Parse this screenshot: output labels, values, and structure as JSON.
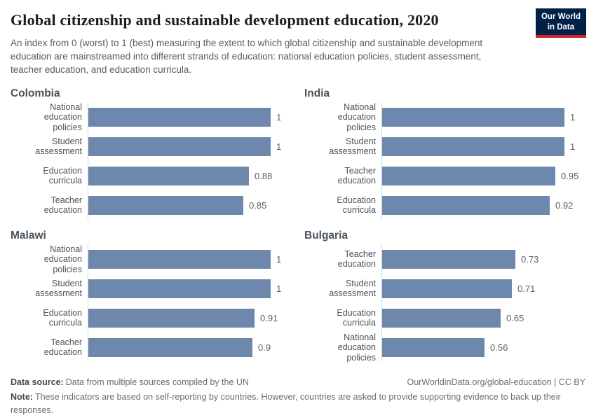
{
  "header": {
    "title": "Global citizenship and sustainable development education, 2020",
    "subtitle": "An index from 0 (worst) to 1 (best) measuring the extent to which global citizenship and sustainable development education are mainstreamed into different strands of education: national education policies, student assessment, teacher education, and education curricula.",
    "logo": {
      "line1": "Our World",
      "line2": "in Data"
    }
  },
  "chart_data": {
    "type": "bar",
    "orientation": "horizontal",
    "value_range": [
      0,
      1
    ],
    "grid": "off",
    "bar_color": "#6d87ad",
    "panels": [
      {
        "country": "Colombia",
        "bars": [
          {
            "label": "National education\npolicies",
            "value": 1,
            "display": "1"
          },
          {
            "label": "Student\nassessment",
            "value": 1,
            "display": "1"
          },
          {
            "label": "Education\ncurricula",
            "value": 0.88,
            "display": "0.88"
          },
          {
            "label": "Teacher education",
            "value": 0.85,
            "display": "0.85"
          }
        ]
      },
      {
        "country": "India",
        "bars": [
          {
            "label": "National education\npolicies",
            "value": 1,
            "display": "1"
          },
          {
            "label": "Student\nassessment",
            "value": 1,
            "display": "1"
          },
          {
            "label": "Teacher education",
            "value": 0.95,
            "display": "0.95"
          },
          {
            "label": "Education\ncurricula",
            "value": 0.92,
            "display": "0.92"
          }
        ]
      },
      {
        "country": "Malawi",
        "bars": [
          {
            "label": "National education\npolicies",
            "value": 1,
            "display": "1"
          },
          {
            "label": "Student\nassessment",
            "value": 1,
            "display": "1"
          },
          {
            "label": "Education\ncurricula",
            "value": 0.91,
            "display": "0.91"
          },
          {
            "label": "Teacher education",
            "value": 0.9,
            "display": "0.9"
          }
        ]
      },
      {
        "country": "Bulgaria",
        "bars": [
          {
            "label": "Teacher education",
            "value": 0.73,
            "display": "0.73"
          },
          {
            "label": "Student\nassessment",
            "value": 0.71,
            "display": "0.71"
          },
          {
            "label": "Education\ncurricula",
            "value": 0.65,
            "display": "0.65"
          },
          {
            "label": "National education\npolicies",
            "value": 0.56,
            "display": "0.56"
          }
        ]
      }
    ]
  },
  "footer": {
    "data_source": {
      "label": "Data source:",
      "text": "Data from multiple sources compiled by the UN"
    },
    "citation": "OurWorldinData.org/global-education | CC BY",
    "note": {
      "label": "Note:",
      "text": "These indicators are based on self-reporting by countries. However, countries are asked to provide supporting evidence to back up their responses."
    }
  },
  "colors": {
    "bar": "#6d87ad",
    "axis_line": "#d5d7d8",
    "logo_background": "#002147",
    "logo_accent": "#d22328"
  }
}
